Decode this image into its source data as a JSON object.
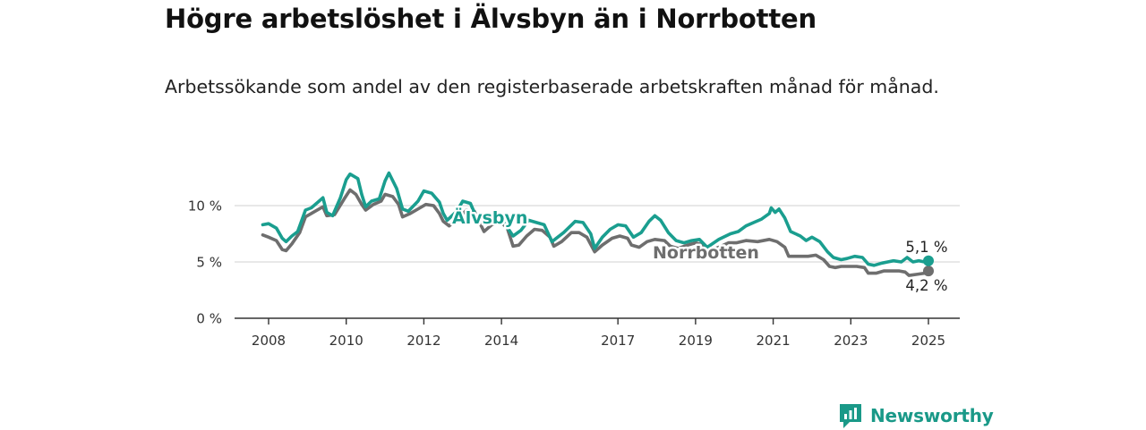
{
  "title": "Högre arbetslöshet i Älvsbyn än i Norrbotten",
  "subtitle": "Arbetssökande som andel av den registerbaserade arbetskraften månad för månad.",
  "brand": {
    "name": "Newsworthy",
    "logo_icon": "bar-chart-speech-bubble-icon",
    "color": "#1a9988"
  },
  "chart_data": {
    "type": "line",
    "title": "Högre arbetslöshet i Älvsbyn än i Norrbotten",
    "xlabel": "",
    "ylabel": "",
    "x_range": [
      2007.85,
      2025.0
    ],
    "ylim": [
      0,
      12
    ],
    "y_ticks": [
      0,
      5,
      10
    ],
    "y_tick_labels": [
      "0 %",
      "5 %",
      "10 %"
    ],
    "x_ticks": [
      2008,
      2010,
      2012,
      2014,
      2017,
      2019,
      2021,
      2023,
      2025
    ],
    "x_tick_labels": [
      "2008",
      "2010",
      "2012",
      "2014",
      "2017",
      "2019",
      "2021",
      "2023",
      "2025"
    ],
    "grid": true,
    "series": [
      {
        "name": "Älvsbyn",
        "color": "#1a9e8f",
        "end_label": "5,1 %",
        "points": [
          [
            2007.85,
            8.3
          ],
          [
            2008.0,
            8.4
          ],
          [
            2008.2,
            8.0
          ],
          [
            2008.35,
            7.1
          ],
          [
            2008.45,
            6.8
          ],
          [
            2008.6,
            7.3
          ],
          [
            2008.75,
            7.7
          ],
          [
            2008.95,
            9.6
          ],
          [
            2009.1,
            9.8
          ],
          [
            2009.3,
            10.4
          ],
          [
            2009.4,
            10.7
          ],
          [
            2009.5,
            9.4
          ],
          [
            2009.65,
            9.1
          ],
          [
            2009.85,
            10.7
          ],
          [
            2010.0,
            12.3
          ],
          [
            2010.1,
            12.8
          ],
          [
            2010.3,
            12.4
          ],
          [
            2010.4,
            11.0
          ],
          [
            2010.5,
            9.9
          ],
          [
            2010.65,
            10.4
          ],
          [
            2010.85,
            10.6
          ],
          [
            2011.0,
            12.2
          ],
          [
            2011.1,
            12.9
          ],
          [
            2011.3,
            11.5
          ],
          [
            2011.45,
            9.7
          ],
          [
            2011.6,
            9.5
          ],
          [
            2011.85,
            10.4
          ],
          [
            2012.0,
            11.3
          ],
          [
            2012.2,
            11.1
          ],
          [
            2012.4,
            10.3
          ],
          [
            2012.5,
            9.3
          ],
          [
            2012.6,
            8.7
          ],
          [
            2012.85,
            9.5
          ],
          [
            2013.0,
            10.4
          ],
          [
            2013.2,
            10.2
          ],
          [
            2013.4,
            8.6
          ],
          [
            2013.6,
            8.9
          ],
          [
            2013.9,
            9.0
          ],
          [
            2014.0,
            8.9
          ],
          [
            2014.2,
            7.8
          ],
          [
            2014.3,
            7.3
          ],
          [
            2014.5,
            7.8
          ],
          [
            2014.7,
            8.7
          ],
          [
            2014.9,
            8.5
          ],
          [
            2015.1,
            8.3
          ],
          [
            2015.3,
            6.8
          ],
          [
            2015.6,
            7.6
          ],
          [
            2015.9,
            8.6
          ],
          [
            2016.1,
            8.5
          ],
          [
            2016.3,
            7.5
          ],
          [
            2016.4,
            6.2
          ],
          [
            2016.6,
            7.2
          ],
          [
            2016.8,
            7.9
          ],
          [
            2017.0,
            8.3
          ],
          [
            2017.2,
            8.2
          ],
          [
            2017.4,
            7.2
          ],
          [
            2017.6,
            7.6
          ],
          [
            2017.8,
            8.6
          ],
          [
            2017.95,
            9.1
          ],
          [
            2018.1,
            8.7
          ],
          [
            2018.3,
            7.6
          ],
          [
            2018.5,
            6.9
          ],
          [
            2018.7,
            6.7
          ],
          [
            2018.9,
            6.9
          ],
          [
            2019.1,
            7.0
          ],
          [
            2019.3,
            6.3
          ],
          [
            2019.6,
            7.0
          ],
          [
            2019.9,
            7.5
          ],
          [
            2020.1,
            7.7
          ],
          [
            2020.3,
            8.2
          ],
          [
            2020.5,
            8.5
          ],
          [
            2020.7,
            8.8
          ],
          [
            2020.9,
            9.3
          ],
          [
            2020.95,
            9.8
          ],
          [
            2021.05,
            9.4
          ],
          [
            2021.15,
            9.7
          ],
          [
            2021.3,
            8.9
          ],
          [
            2021.45,
            7.7
          ],
          [
            2021.7,
            7.3
          ],
          [
            2021.85,
            6.9
          ],
          [
            2022.0,
            7.2
          ],
          [
            2022.2,
            6.8
          ],
          [
            2022.4,
            5.9
          ],
          [
            2022.55,
            5.4
          ],
          [
            2022.75,
            5.2
          ],
          [
            2022.9,
            5.3
          ],
          [
            2023.1,
            5.5
          ],
          [
            2023.3,
            5.4
          ],
          [
            2023.45,
            4.8
          ],
          [
            2023.6,
            4.7
          ],
          [
            2023.8,
            4.9
          ],
          [
            2023.95,
            5.0
          ],
          [
            2024.1,
            5.1
          ],
          [
            2024.3,
            5.0
          ],
          [
            2024.45,
            5.4
          ],
          [
            2024.6,
            5.0
          ],
          [
            2024.75,
            5.1
          ],
          [
            2024.9,
            5.0
          ],
          [
            2025.0,
            5.1
          ]
        ]
      },
      {
        "name": "Norrbotten",
        "color": "#6e6e6e",
        "end_label": "4,2 %",
        "points": [
          [
            2007.85,
            7.4
          ],
          [
            2008.0,
            7.2
          ],
          [
            2008.2,
            6.9
          ],
          [
            2008.35,
            6.1
          ],
          [
            2008.45,
            6.0
          ],
          [
            2008.6,
            6.6
          ],
          [
            2008.8,
            7.6
          ],
          [
            2008.95,
            9.0
          ],
          [
            2009.2,
            9.5
          ],
          [
            2009.4,
            9.9
          ],
          [
            2009.5,
            9.1
          ],
          [
            2009.7,
            9.2
          ],
          [
            2009.95,
            10.6
          ],
          [
            2010.1,
            11.4
          ],
          [
            2010.25,
            11.0
          ],
          [
            2010.4,
            10.1
          ],
          [
            2010.5,
            9.6
          ],
          [
            2010.7,
            10.1
          ],
          [
            2010.9,
            10.4
          ],
          [
            2011.0,
            11.0
          ],
          [
            2011.2,
            10.8
          ],
          [
            2011.35,
            10.1
          ],
          [
            2011.45,
            9.0
          ],
          [
            2011.65,
            9.3
          ],
          [
            2011.9,
            9.8
          ],
          [
            2012.05,
            10.1
          ],
          [
            2012.25,
            10.0
          ],
          [
            2012.4,
            9.3
          ],
          [
            2012.5,
            8.6
          ],
          [
            2012.65,
            8.2
          ],
          [
            2012.9,
            8.9
          ],
          [
            2013.1,
            9.6
          ],
          [
            2013.3,
            9.5
          ],
          [
            2013.45,
            8.4
          ],
          [
            2013.55,
            7.7
          ],
          [
            2013.75,
            8.3
          ],
          [
            2014.0,
            8.5
          ],
          [
            2014.15,
            8.0
          ],
          [
            2014.3,
            6.4
          ],
          [
            2014.45,
            6.5
          ],
          [
            2014.65,
            7.3
          ],
          [
            2014.85,
            7.9
          ],
          [
            2015.05,
            7.8
          ],
          [
            2015.25,
            7.2
          ],
          [
            2015.35,
            6.4
          ],
          [
            2015.55,
            6.8
          ],
          [
            2015.8,
            7.6
          ],
          [
            2016.0,
            7.6
          ],
          [
            2016.2,
            7.2
          ],
          [
            2016.4,
            5.9
          ],
          [
            2016.6,
            6.5
          ],
          [
            2016.85,
            7.1
          ],
          [
            2017.05,
            7.3
          ],
          [
            2017.25,
            7.1
          ],
          [
            2017.35,
            6.5
          ],
          [
            2017.55,
            6.3
          ],
          [
            2017.75,
            6.8
          ],
          [
            2017.95,
            7.0
          ],
          [
            2018.2,
            6.9
          ],
          [
            2018.35,
            6.4
          ],
          [
            2018.55,
            6.2
          ],
          [
            2018.8,
            6.5
          ],
          [
            2019.0,
            6.7
          ],
          [
            2019.2,
            6.5
          ],
          [
            2019.35,
            6.0
          ],
          [
            2019.6,
            6.3
          ],
          [
            2019.85,
            6.7
          ],
          [
            2020.05,
            6.7
          ],
          [
            2020.3,
            6.9
          ],
          [
            2020.6,
            6.8
          ],
          [
            2020.9,
            7.0
          ],
          [
            2021.1,
            6.8
          ],
          [
            2021.3,
            6.3
          ],
          [
            2021.4,
            5.5
          ],
          [
            2021.7,
            5.5
          ],
          [
            2021.9,
            5.5
          ],
          [
            2022.1,
            5.6
          ],
          [
            2022.3,
            5.2
          ],
          [
            2022.45,
            4.6
          ],
          [
            2022.6,
            4.5
          ],
          [
            2022.75,
            4.6
          ],
          [
            2022.95,
            4.6
          ],
          [
            2023.15,
            4.6
          ],
          [
            2023.35,
            4.5
          ],
          [
            2023.45,
            4.0
          ],
          [
            2023.65,
            4.0
          ],
          [
            2023.85,
            4.2
          ],
          [
            2024.05,
            4.2
          ],
          [
            2024.25,
            4.2
          ],
          [
            2024.4,
            4.1
          ],
          [
            2024.5,
            3.8
          ],
          [
            2024.7,
            3.9
          ],
          [
            2024.9,
            4.0
          ],
          [
            2025.0,
            4.2
          ]
        ]
      }
    ]
  }
}
